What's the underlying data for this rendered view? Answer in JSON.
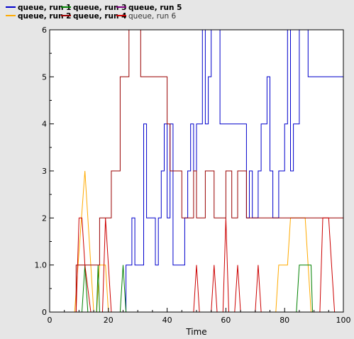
{
  "chart_data": {
    "type": "line",
    "title": "",
    "xlabel": "Time",
    "ylabel": "",
    "xlim": [
      0,
      100
    ],
    "ylim": [
      0,
      6
    ],
    "x_ticks": [
      {
        "value": 0,
        "label": "0"
      },
      {
        "value": 20,
        "label": "20"
      },
      {
        "value": 40,
        "label": "40"
      },
      {
        "value": 60,
        "label": "60"
      },
      {
        "value": 80,
        "label": "80"
      },
      {
        "value": 100,
        "label": "100"
      }
    ],
    "y_ticks": [
      {
        "value": 0,
        "label": "0"
      },
      {
        "value": 1,
        "label": "1.0"
      },
      {
        "value": 2,
        "label": "2"
      },
      {
        "value": 3,
        "label": "3"
      },
      {
        "value": 4,
        "label": "4"
      },
      {
        "value": 5,
        "label": "5"
      },
      {
        "value": 6,
        "label": "6"
      }
    ],
    "grid": false,
    "legend_position": "top-left",
    "series": [
      {
        "name": "queue, run 1",
        "color": "#0000cc",
        "step": true,
        "points": [
          [
            0,
            0
          ],
          [
            26,
            0
          ],
          [
            26,
            1
          ],
          [
            28,
            1
          ],
          [
            28,
            2
          ],
          [
            29,
            2
          ],
          [
            29,
            1
          ],
          [
            32,
            1
          ],
          [
            32,
            4
          ],
          [
            33,
            4
          ],
          [
            33,
            2
          ],
          [
            36,
            2
          ],
          [
            36,
            1
          ],
          [
            37,
            1
          ],
          [
            37,
            2
          ],
          [
            38,
            2
          ],
          [
            38,
            3
          ],
          [
            39,
            3
          ],
          [
            39,
            4
          ],
          [
            40,
            4
          ],
          [
            40,
            2
          ],
          [
            41,
            2
          ],
          [
            41,
            4
          ],
          [
            42,
            4
          ],
          [
            42,
            1
          ],
          [
            46,
            1
          ],
          [
            46,
            2
          ],
          [
            47,
            2
          ],
          [
            47,
            3
          ],
          [
            48,
            3
          ],
          [
            48,
            4
          ],
          [
            49,
            4
          ],
          [
            49,
            3
          ],
          [
            50,
            3
          ],
          [
            50,
            4
          ],
          [
            52,
            4
          ],
          [
            52,
            6
          ],
          [
            53,
            6
          ],
          [
            53,
            4
          ],
          [
            54,
            4
          ],
          [
            54,
            5
          ],
          [
            55,
            5
          ],
          [
            55,
            6
          ],
          [
            58,
            6
          ],
          [
            58,
            4
          ],
          [
            67,
            4
          ],
          [
            67,
            2
          ],
          [
            68,
            2
          ],
          [
            68,
            3
          ],
          [
            69,
            3
          ],
          [
            69,
            2
          ],
          [
            71,
            2
          ],
          [
            71,
            3
          ],
          [
            72,
            3
          ],
          [
            72,
            4
          ],
          [
            74,
            4
          ],
          [
            74,
            5
          ],
          [
            75,
            5
          ],
          [
            75,
            3
          ],
          [
            76,
            3
          ],
          [
            76,
            2
          ],
          [
            78,
            2
          ],
          [
            78,
            3
          ],
          [
            80,
            3
          ],
          [
            80,
            4
          ],
          [
            81,
            4
          ],
          [
            81,
            6
          ],
          [
            82,
            6
          ],
          [
            82,
            3
          ],
          [
            83,
            3
          ],
          [
            83,
            4
          ],
          [
            85,
            4
          ],
          [
            85,
            6
          ],
          [
            88,
            6
          ],
          [
            88,
            5
          ],
          [
            100,
            5
          ]
        ]
      },
      {
        "name": "queue, run 2",
        "color": "#ffaa00",
        "step": false,
        "points": [
          [
            0,
            0
          ],
          [
            8.5,
            0
          ],
          [
            12,
            3
          ],
          [
            15,
            0
          ],
          [
            16,
            0
          ],
          [
            17,
            1
          ],
          [
            19,
            1
          ],
          [
            20,
            0
          ],
          [
            77,
            0
          ],
          [
            78,
            1
          ],
          [
            81,
            1
          ],
          [
            82,
            2
          ],
          [
            87,
            2
          ],
          [
            88,
            1
          ],
          [
            89,
            0
          ],
          [
            100,
            0
          ]
        ]
      },
      {
        "name": "queue, run 3",
        "color": "#008000",
        "step": false,
        "points": [
          [
            0,
            0
          ],
          [
            11,
            0
          ],
          [
            12,
            1
          ],
          [
            13,
            0
          ],
          [
            16,
            0
          ],
          [
            16.5,
            1
          ],
          [
            17,
            0
          ],
          [
            24,
            0
          ],
          [
            25,
            1
          ],
          [
            26,
            0
          ],
          [
            84,
            0
          ],
          [
            85,
            1
          ],
          [
            89,
            1
          ],
          [
            89.5,
            0
          ],
          [
            100,
            0
          ]
        ]
      },
      {
        "name": "queue, run 4",
        "color": "#990000",
        "step": true,
        "points": [
          [
            0,
            0
          ],
          [
            9,
            0
          ],
          [
            9,
            1
          ],
          [
            17,
            1
          ],
          [
            17,
            2
          ],
          [
            21,
            2
          ],
          [
            21,
            3
          ],
          [
            24,
            3
          ],
          [
            24,
            5
          ],
          [
            27,
            5
          ],
          [
            27,
            6
          ],
          [
            31,
            6
          ],
          [
            31,
            5
          ],
          [
            40,
            5
          ],
          [
            40,
            4
          ],
          [
            41,
            4
          ],
          [
            41,
            3
          ],
          [
            45,
            3
          ],
          [
            45,
            2
          ],
          [
            49,
            2
          ],
          [
            49,
            3
          ],
          [
            50,
            3
          ],
          [
            50,
            2
          ],
          [
            53,
            2
          ],
          [
            53,
            3
          ],
          [
            56,
            3
          ],
          [
            56,
            2
          ],
          [
            60,
            2
          ],
          [
            60,
            3
          ],
          [
            62,
            3
          ],
          [
            62,
            2
          ],
          [
            64,
            2
          ],
          [
            64,
            3
          ],
          [
            67,
            3
          ],
          [
            67,
            2
          ],
          [
            100,
            2
          ]
        ]
      },
      {
        "name": "queue, run 5",
        "color": "#800080",
        "step": false,
        "points": [
          [
            0,
            0
          ],
          [
            100,
            0
          ]
        ]
      },
      {
        "name": "queue, run 6",
        "color": "#cc0000",
        "step": false,
        "muted": true,
        "points": [
          [
            0,
            0
          ],
          [
            9,
            0
          ],
          [
            10,
            2
          ],
          [
            11,
            2
          ],
          [
            12,
            1
          ],
          [
            14,
            0
          ],
          [
            18,
            0
          ],
          [
            19,
            2
          ],
          [
            21,
            0
          ],
          [
            49,
            0
          ],
          [
            50,
            1
          ],
          [
            51,
            0
          ],
          [
            55,
            0
          ],
          [
            56,
            1
          ],
          [
            57,
            0
          ],
          [
            59,
            0
          ],
          [
            60,
            2
          ],
          [
            61,
            0
          ],
          [
            63,
            0
          ],
          [
            64,
            1
          ],
          [
            65,
            0
          ],
          [
            70,
            0
          ],
          [
            71,
            1
          ],
          [
            72,
            0
          ],
          [
            92,
            0
          ],
          [
            93,
            2
          ],
          [
            95,
            2
          ],
          [
            96,
            1
          ],
          [
            97,
            0
          ],
          [
            100,
            0
          ]
        ]
      }
    ]
  }
}
